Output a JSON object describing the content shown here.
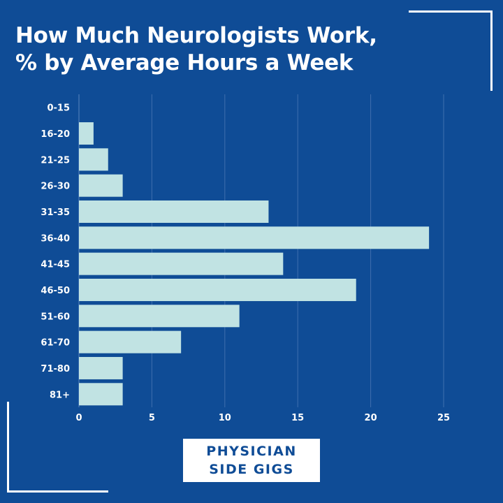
{
  "title": {
    "line1": "How Much Neurologists Work,",
    "line2": "% by Average Hours a Week"
  },
  "logo": {
    "line1": "PHYSICIAN",
    "line2": "SIDE GIGS"
  },
  "colors": {
    "background": "#0f4c96",
    "bar": "#c1e3e3",
    "text": "#ffffff",
    "logo_text": "#0f4c96",
    "logo_background": "#ffffff"
  },
  "chart_data": {
    "type": "bar",
    "orientation": "horizontal",
    "title": "How Much Neurologists Work, % by Average Hours a Week",
    "categories": [
      "0-15",
      "16-20",
      "21-25",
      "26-30",
      "31-35",
      "36-40",
      "41-45",
      "46-50",
      "51-60",
      "61-70",
      "71-80",
      "81+"
    ],
    "values": [
      0,
      1,
      2,
      3,
      13,
      24,
      14,
      19,
      11,
      7,
      3,
      3
    ],
    "xlim": [
      0,
      25
    ],
    "xticks": [
      0,
      5,
      10,
      15,
      20,
      25
    ],
    "xlabel": "",
    "ylabel": "",
    "grid": "vertical",
    "legend": "none"
  }
}
